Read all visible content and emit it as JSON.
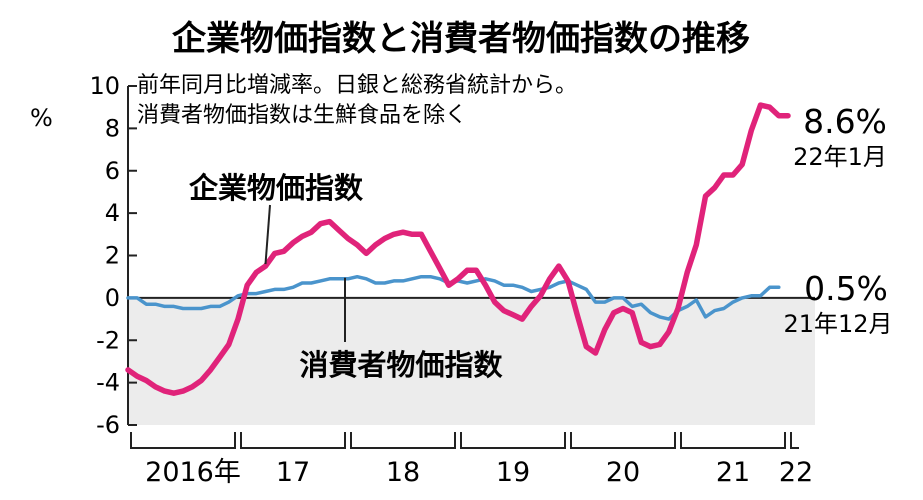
{
  "chart_data": {
    "type": "line",
    "title": "企業物価指数と消費者物価指数の推移",
    "notes": [
      "前年同月比増減率。日銀と総務省統計から。",
      "消費者物価指数は生鮮食品を除く"
    ],
    "ylabel": "%",
    "ylim": [
      -6,
      10
    ],
    "yticks": [
      "10",
      "8",
      "6",
      "4",
      "2",
      "0",
      "-2",
      "-4",
      "-6"
    ],
    "xtick_labels": [
      "2016年",
      "17",
      "18",
      "19",
      "20",
      "21",
      "22"
    ],
    "shade_below_zero": true,
    "colors": {
      "cgpi": "#e0237a",
      "cpi": "#4a94cc",
      "shade": "#ececec",
      "axis": "#222222"
    },
    "series": [
      {
        "name": "企業物価指数",
        "key": "cgpi",
        "start": "2016-01",
        "values": [
          -3.4,
          -3.7,
          -3.9,
          -4.2,
          -4.4,
          -4.5,
          -4.4,
          -4.2,
          -3.9,
          -3.4,
          -2.8,
          -2.2,
          -1.0,
          0.6,
          1.2,
          1.5,
          2.1,
          2.2,
          2.6,
          2.9,
          3.1,
          3.5,
          3.6,
          3.2,
          2.8,
          2.5,
          2.1,
          2.5,
          2.8,
          3.0,
          3.1,
          3.0,
          3.0,
          2.2,
          1.4,
          0.6,
          0.9,
          1.3,
          1.3,
          0.6,
          -0.2,
          -0.6,
          -0.8,
          -1.0,
          -0.4,
          0.1,
          0.9,
          1.5,
          0.8,
          -0.8,
          -2.3,
          -2.6,
          -1.5,
          -0.7,
          -0.5,
          -0.7,
          -2.1,
          -2.3,
          -2.2,
          -1.6,
          -0.5,
          1.2,
          2.5,
          4.8,
          5.2,
          5.8,
          5.8,
          6.3,
          7.9,
          9.1,
          9.0,
          8.6,
          8.6
        ],
        "end_value_label": "8.6%",
        "end_date_label": "22年1月"
      },
      {
        "name": "消費者物価指数",
        "key": "cpi",
        "start": "2016-01",
        "values": [
          0.0,
          0.0,
          -0.3,
          -0.3,
          -0.4,
          -0.4,
          -0.5,
          -0.5,
          -0.5,
          -0.4,
          -0.4,
          -0.2,
          0.1,
          0.2,
          0.2,
          0.3,
          0.4,
          0.4,
          0.5,
          0.7,
          0.7,
          0.8,
          0.9,
          0.9,
          0.9,
          1.0,
          0.9,
          0.7,
          0.7,
          0.8,
          0.8,
          0.9,
          1.0,
          1.0,
          0.9,
          0.7,
          0.8,
          0.7,
          0.8,
          0.9,
          0.8,
          0.6,
          0.6,
          0.5,
          0.3,
          0.4,
          0.5,
          0.7,
          0.8,
          0.6,
          0.4,
          -0.2,
          -0.2,
          0.0,
          0.0,
          -0.4,
          -0.3,
          -0.7,
          -0.9,
          -1.0,
          -0.6,
          -0.4,
          -0.1,
          -0.9,
          -0.6,
          -0.5,
          -0.2,
          0.0,
          0.1,
          0.1,
          0.5,
          0.5
        ],
        "end_value_label": "0.5%",
        "end_date_label": "21年12月"
      }
    ]
  }
}
